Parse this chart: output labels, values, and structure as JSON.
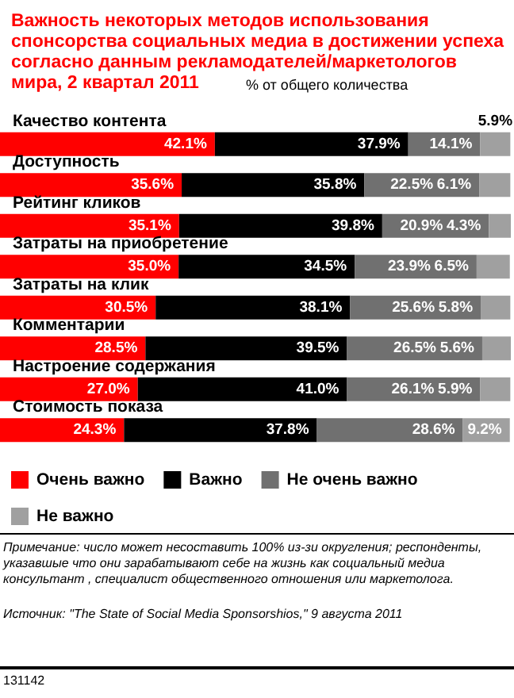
{
  "chart_data": {
    "type": "bar",
    "orientation": "horizontal",
    "stacked": true,
    "title": "Важность некоторых методов использования спонсорства социальных медиа в достижении успеха согласно данным рекламодателей/маркетологов мира, 2 квартал 2011",
    "subtitle": "% от общего количества",
    "categories": [
      "Качество контента",
      "Доступность",
      "Рейтинг кликов",
      "Затраты на приобретение",
      "Затраты на клик",
      "Комментарии",
      "Настроение содержания",
      "Стоимость показа"
    ],
    "series": [
      {
        "name": "Очень важно",
        "color": "#ff0000",
        "values": [
          42.1,
          35.6,
          35.1,
          35.0,
          30.5,
          28.5,
          27.0,
          24.3
        ],
        "value_labels": [
          "42.1%",
          "35.6%",
          "35.1%",
          "35.0%",
          "30.5%",
          "28.5%",
          "27.0%",
          "24.3%"
        ]
      },
      {
        "name": "Важно",
        "color": "#000000",
        "values": [
          37.9,
          35.8,
          39.8,
          34.5,
          38.1,
          39.5,
          41.0,
          37.8
        ],
        "value_labels": [
          "37.9%",
          "35.8%",
          "39.8%",
          "34.5%",
          "38.1%",
          "39.5%",
          "41.0%",
          "37.8%"
        ]
      },
      {
        "name": "Не очень важно",
        "color": "#707070",
        "values": [
          14.1,
          22.5,
          20.9,
          23.9,
          25.6,
          26.5,
          26.1,
          28.6
        ],
        "value_labels": [
          "14.1%",
          "22.5%",
          "20.9%",
          "23.9%",
          "25.6%",
          "26.5%",
          "26.1%",
          "28.6%"
        ]
      },
      {
        "name": "Не важно",
        "color": "#a0a0a0",
        "values": [
          5.9,
          6.1,
          4.3,
          6.5,
          5.8,
          5.6,
          5.9,
          9.2
        ],
        "value_labels": [
          "5.9%",
          "6.1%",
          "4.3%",
          "6.5%",
          "5.8%",
          "5.6%",
          "5.9%",
          "9.2%"
        ]
      }
    ],
    "legend": "bottom",
    "annotations": [
      "Примечание: число может несоставить 100% из-зи округления; респонденты, указавшые что они зарабатывают себе на жизнь как социальный медиа консультант , специалист общественного отношения или маркетолога.",
      "Источник: \"The State of Social Media Sponsorshios,\" 9 августа 2011",
      "131142"
    ]
  }
}
